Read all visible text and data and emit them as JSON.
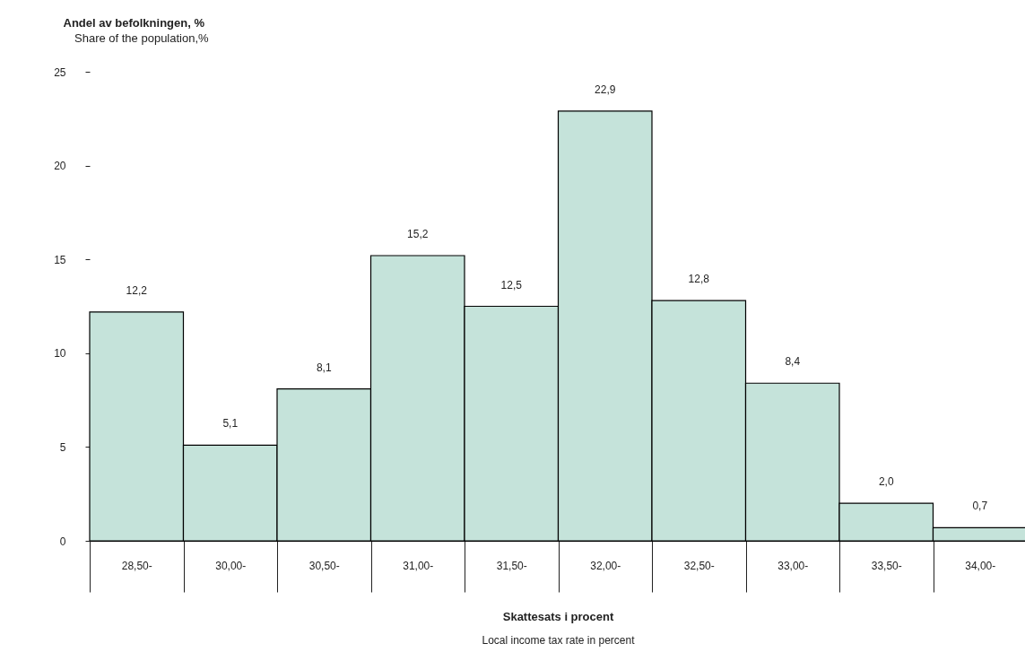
{
  "chart_data": {
    "type": "bar",
    "ylabel": "Andel av befolkningen, %",
    "annotations": [
      "Share of the population,%",
      "Skattesats i procent",
      "Local income tax rate in percent"
    ],
    "categories": [
      "28,50-",
      "30,00-",
      "30,50-",
      "31,00-",
      "31,50-",
      "32,00-",
      "32,50-",
      "33,00-",
      "33,50-",
      "34,00-"
    ],
    "values": [
      12.2,
      5.1,
      8.1,
      15.2,
      12.5,
      22.9,
      12.8,
      8.4,
      2.0,
      0.7
    ],
    "value_labels": [
      "12,2",
      "5,1",
      "8,1",
      "15,2",
      "12,5",
      "22,9",
      "12,8",
      "8,4",
      "2,0",
      "0,7"
    ],
    "color": "#c5e3da",
    "ylim": [
      0,
      25
    ],
    "yticks": [
      0,
      5,
      10,
      15,
      20,
      25
    ],
    "grid": false
  }
}
